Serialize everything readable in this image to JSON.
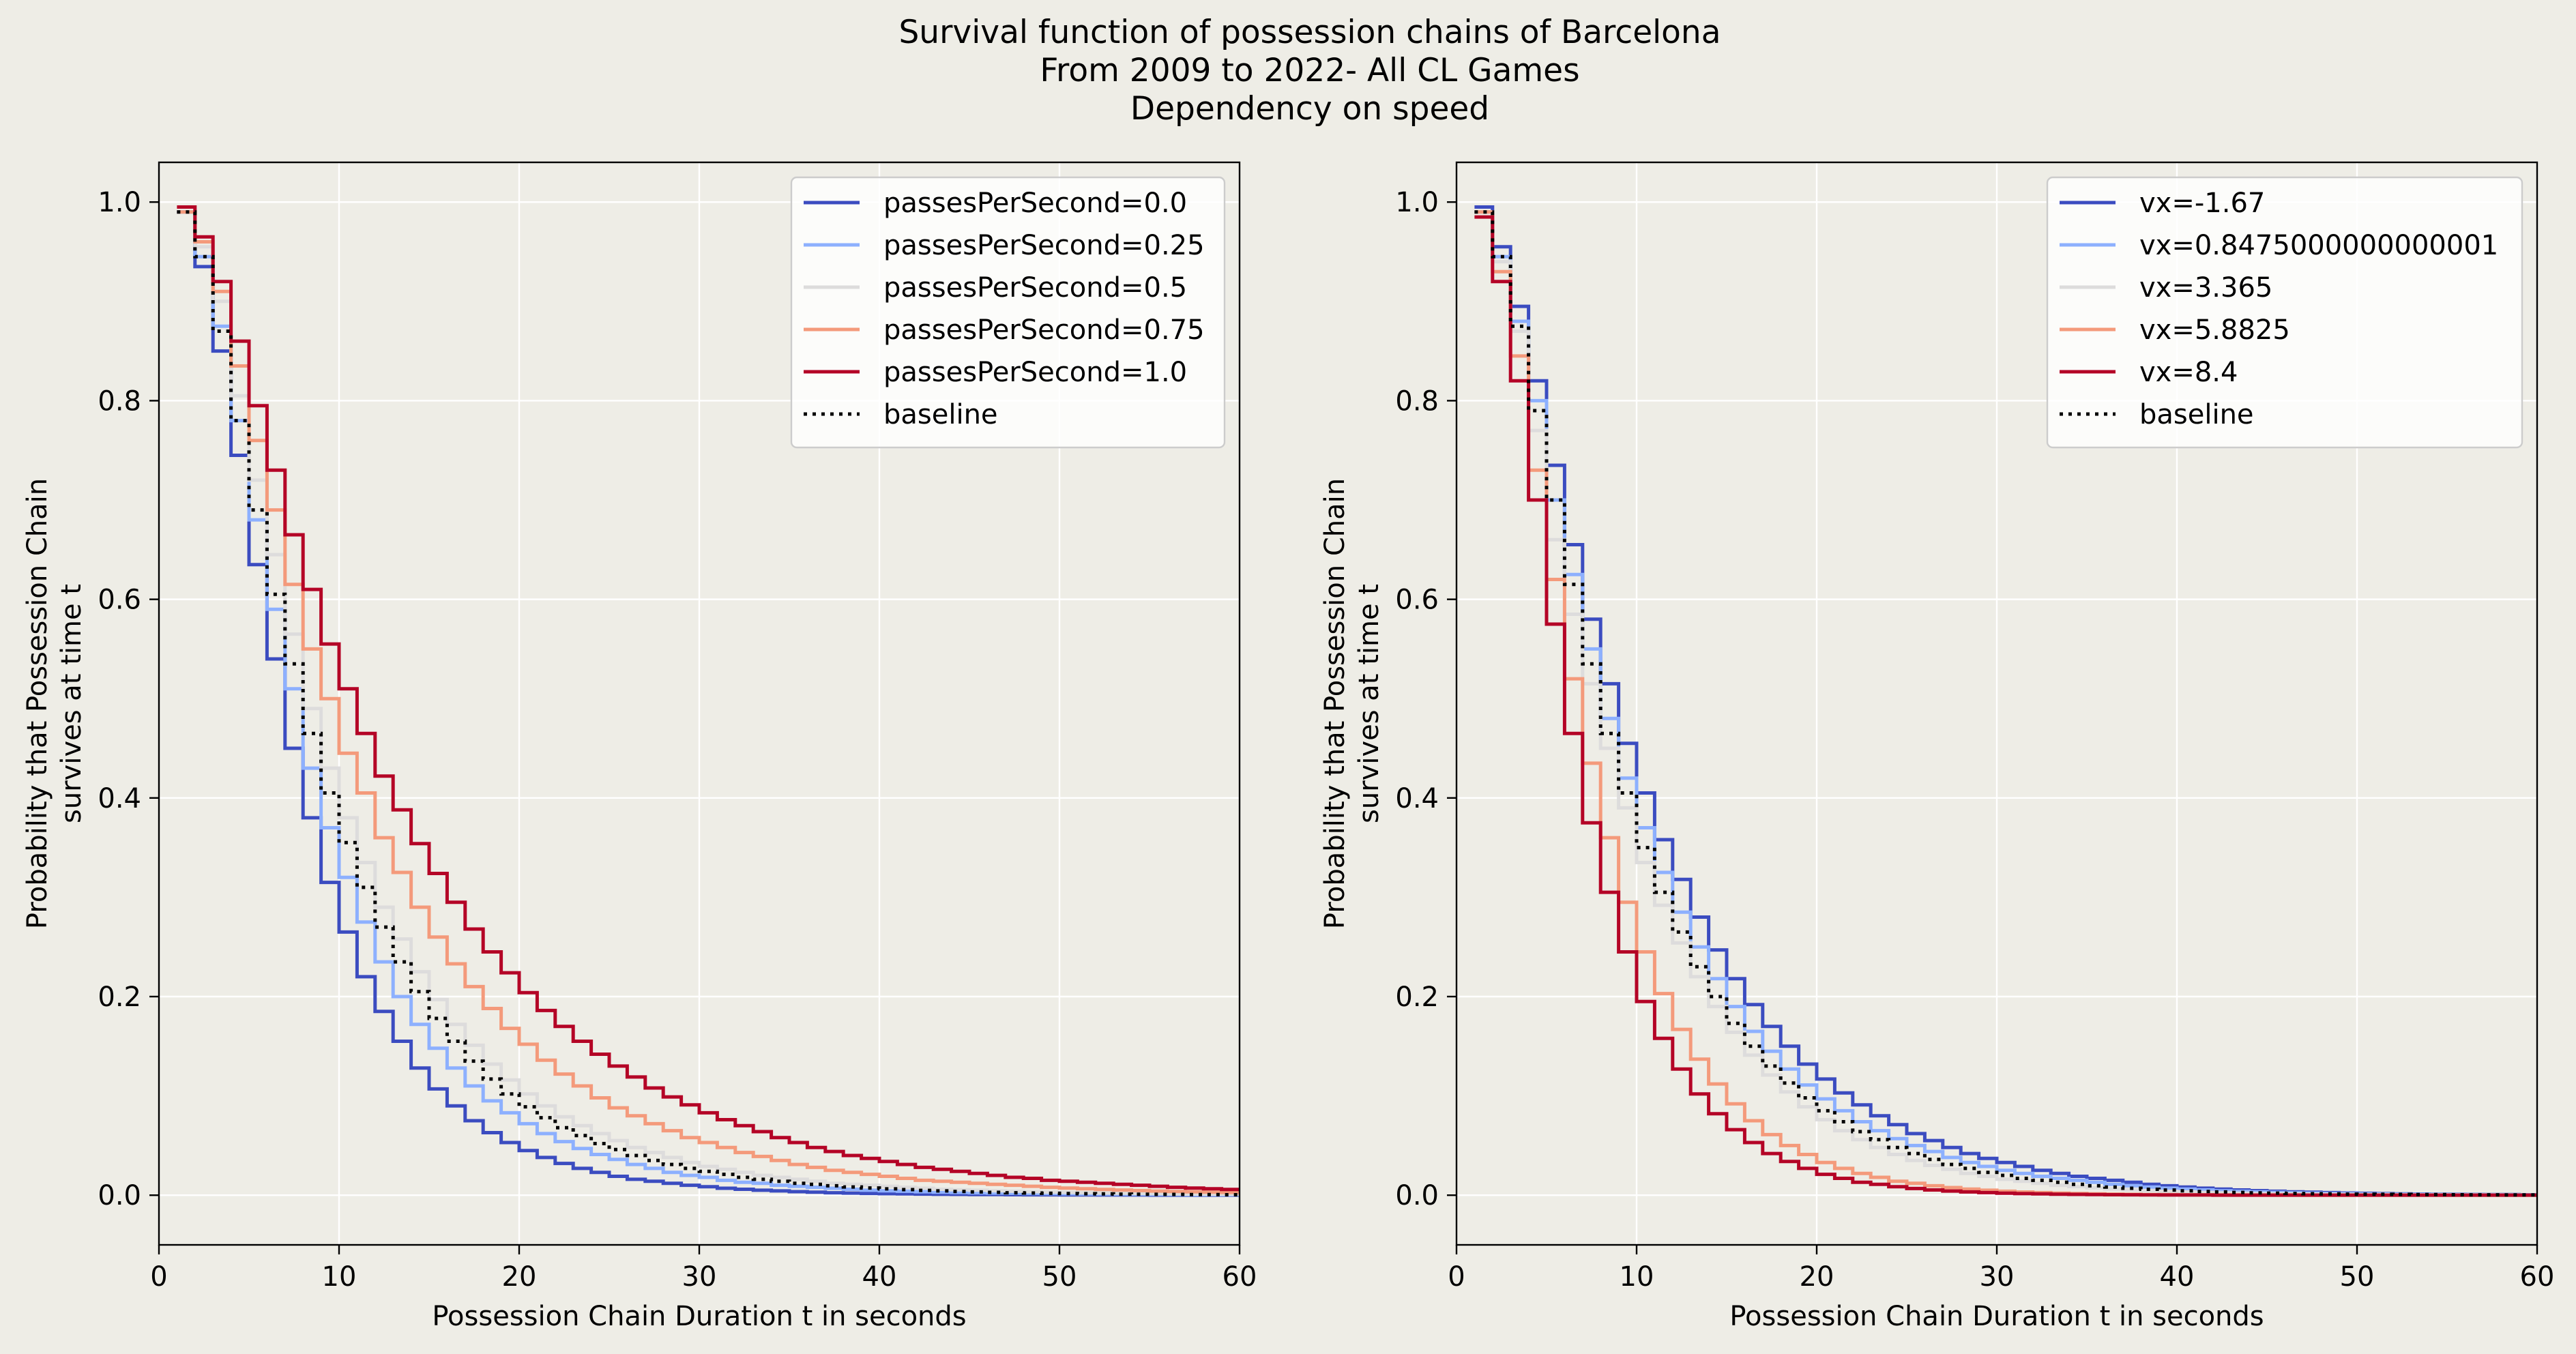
{
  "figure": {
    "title_lines": [
      "Survival function of possession chains of Barcelona",
      "From 2009 to 2022- All CL Games",
      "Dependency on speed"
    ],
    "background": "#eeede6",
    "axes_background": "#eeede6",
    "grid_color": "#ffffff"
  },
  "chart_data": [
    {
      "type": "line",
      "step": true,
      "xlabel": "Possession Chain Duration t in seconds",
      "ylabel_lines": [
        "Probability that Possession Chain",
        "survives at time t"
      ],
      "xlim": [
        0,
        60
      ],
      "ylim": [
        -0.05,
        1.04
      ],
      "xticks": [
        0,
        10,
        20,
        30,
        40,
        50,
        60
      ],
      "yticks": [
        0.0,
        0.2,
        0.4,
        0.6,
        0.8,
        1.0
      ],
      "grid": true,
      "legend_position": "top-right",
      "x": [
        1,
        2,
        3,
        4,
        5,
        6,
        7,
        8,
        9,
        10,
        11,
        12,
        13,
        14,
        15,
        16,
        17,
        18,
        19,
        20,
        21,
        22,
        23,
        24,
        25,
        26,
        27,
        28,
        29,
        30,
        31,
        32,
        33,
        34,
        35,
        36,
        37,
        38,
        39,
        40,
        41,
        42,
        43,
        44,
        45,
        46,
        47,
        48,
        49,
        50,
        51,
        52,
        53,
        54,
        55,
        56,
        57,
        58,
        59,
        60
      ],
      "series": [
        {
          "name": "passesPerSecond=0.0",
          "color": "#3b4cc0",
          "dash": "solid",
          "values": [
            0.99,
            0.935,
            0.85,
            0.745,
            0.635,
            0.54,
            0.45,
            0.38,
            0.315,
            0.265,
            0.22,
            0.185,
            0.155,
            0.128,
            0.107,
            0.09,
            0.075,
            0.063,
            0.053,
            0.045,
            0.038,
            0.032,
            0.027,
            0.023,
            0.019,
            0.016,
            0.014,
            0.012,
            0.01,
            0.0085,
            0.007,
            0.006,
            0.005,
            0.0043,
            0.0036,
            0.003,
            0.0025,
            0.0021,
            0.0018,
            0.0015,
            0.0013,
            0.0011,
            0.0009,
            0.0008,
            0.0007,
            0.0006,
            0.0005,
            0.0004,
            0.0004,
            0.0003,
            0.0003,
            0.0002,
            0.0002,
            0.0002,
            0.0001,
            0.0001,
            0.0001,
            0.0001,
            0.0001,
            0.0001
          ]
        },
        {
          "name": "passesPerSecond=0.25",
          "color": "#8db0fe",
          "dash": "solid",
          "values": [
            0.99,
            0.945,
            0.875,
            0.78,
            0.68,
            0.59,
            0.51,
            0.43,
            0.37,
            0.32,
            0.275,
            0.235,
            0.2,
            0.172,
            0.148,
            0.128,
            0.11,
            0.095,
            0.083,
            0.072,
            0.062,
            0.054,
            0.047,
            0.041,
            0.036,
            0.031,
            0.027,
            0.023,
            0.02,
            0.018,
            0.015,
            0.013,
            0.012,
            0.01,
            0.009,
            0.008,
            0.007,
            0.006,
            0.005,
            0.0045,
            0.004,
            0.0035,
            0.003,
            0.0027,
            0.0024,
            0.0021,
            0.0019,
            0.0017,
            0.0015,
            0.0013,
            0.0011,
            0.001,
            0.0009,
            0.0008,
            0.0007,
            0.0006,
            0.0005,
            0.0005,
            0.0004,
            0.0004
          ]
        },
        {
          "name": "passesPerSecond=0.5",
          "color": "#dddcdc",
          "dash": "solid",
          "values": [
            0.99,
            0.955,
            0.9,
            0.805,
            0.72,
            0.645,
            0.565,
            0.49,
            0.43,
            0.38,
            0.335,
            0.29,
            0.258,
            0.225,
            0.197,
            0.172,
            0.151,
            0.132,
            0.116,
            0.102,
            0.09,
            0.079,
            0.07,
            0.062,
            0.055,
            0.048,
            0.043,
            0.038,
            0.033,
            0.029,
            0.026,
            0.023,
            0.02,
            0.018,
            0.016,
            0.014,
            0.012,
            0.011,
            0.01,
            0.009,
            0.008,
            0.007,
            0.006,
            0.0055,
            0.005,
            0.0045,
            0.004,
            0.0035,
            0.003,
            0.0028,
            0.0025,
            0.0022,
            0.002,
            0.0018,
            0.0016,
            0.0014,
            0.0012,
            0.0011,
            0.001,
            0.0009
          ]
        },
        {
          "name": "passesPerSecond=0.75",
          "color": "#f49a7b",
          "dash": "solid",
          "values": [
            0.99,
            0.96,
            0.91,
            0.835,
            0.76,
            0.69,
            0.615,
            0.55,
            0.5,
            0.445,
            0.405,
            0.36,
            0.325,
            0.29,
            0.26,
            0.233,
            0.21,
            0.188,
            0.168,
            0.152,
            0.136,
            0.122,
            0.11,
            0.098,
            0.088,
            0.08,
            0.072,
            0.065,
            0.058,
            0.053,
            0.048,
            0.043,
            0.039,
            0.035,
            0.031,
            0.028,
            0.025,
            0.023,
            0.021,
            0.019,
            0.017,
            0.015,
            0.014,
            0.013,
            0.012,
            0.011,
            0.01,
            0.009,
            0.008,
            0.0072,
            0.0065,
            0.0058,
            0.0052,
            0.0047,
            0.0042,
            0.0038,
            0.0034,
            0.003,
            0.0027,
            0.0024
          ]
        },
        {
          "name": "passesPerSecond=1.0",
          "color": "#b40426",
          "dash": "solid",
          "values": [
            0.995,
            0.965,
            0.92,
            0.86,
            0.795,
            0.73,
            0.665,
            0.61,
            0.555,
            0.51,
            0.465,
            0.422,
            0.388,
            0.354,
            0.324,
            0.295,
            0.268,
            0.245,
            0.224,
            0.204,
            0.186,
            0.17,
            0.155,
            0.142,
            0.13,
            0.119,
            0.108,
            0.099,
            0.091,
            0.083,
            0.076,
            0.07,
            0.064,
            0.058,
            0.053,
            0.048,
            0.044,
            0.04,
            0.037,
            0.034,
            0.031,
            0.028,
            0.026,
            0.024,
            0.022,
            0.02,
            0.018,
            0.017,
            0.015,
            0.014,
            0.013,
            0.012,
            0.011,
            0.01,
            0.009,
            0.008,
            0.0072,
            0.0065,
            0.0058,
            0.0052
          ]
        },
        {
          "name": "baseline",
          "color": "#000000",
          "dash": "dotted",
          "values": [
            0.99,
            0.945,
            0.87,
            0.78,
            0.69,
            0.605,
            0.535,
            0.465,
            0.405,
            0.355,
            0.31,
            0.27,
            0.235,
            0.205,
            0.178,
            0.155,
            0.135,
            0.117,
            0.102,
            0.089,
            0.078,
            0.068,
            0.06,
            0.052,
            0.046,
            0.04,
            0.035,
            0.031,
            0.027,
            0.024,
            0.021,
            0.018,
            0.016,
            0.014,
            0.012,
            0.011,
            0.0095,
            0.0083,
            0.0073,
            0.0064,
            0.0056,
            0.0049,
            0.0043,
            0.0038,
            0.0033,
            0.0029,
            0.0025,
            0.0022,
            0.0019,
            0.0017,
            0.0015,
            0.0013,
            0.0011,
            0.001,
            0.0009,
            0.0008,
            0.0007,
            0.0006,
            0.0005,
            0.0004
          ]
        }
      ]
    },
    {
      "type": "line",
      "step": true,
      "xlabel": "Possession Chain Duration t in seconds",
      "ylabel_lines": [
        "Probability that Possession Chain",
        "survives at time t"
      ],
      "xlim": [
        0,
        60
      ],
      "ylim": [
        -0.05,
        1.04
      ],
      "xticks": [
        0,
        10,
        20,
        30,
        40,
        50,
        60
      ],
      "yticks": [
        0.0,
        0.2,
        0.4,
        0.6,
        0.8,
        1.0
      ],
      "grid": true,
      "legend_position": "top-right",
      "x": [
        1,
        2,
        3,
        4,
        5,
        6,
        7,
        8,
        9,
        10,
        11,
        12,
        13,
        14,
        15,
        16,
        17,
        18,
        19,
        20,
        21,
        22,
        23,
        24,
        25,
        26,
        27,
        28,
        29,
        30,
        31,
        32,
        33,
        34,
        35,
        36,
        37,
        38,
        39,
        40,
        41,
        42,
        43,
        44,
        45,
        46,
        47,
        48,
        49,
        50,
        51,
        52,
        53,
        54,
        55,
        56,
        57,
        58,
        59,
        60
      ],
      "series": [
        {
          "name": "vx=-1.67",
          "color": "#3b4cc0",
          "dash": "solid",
          "values": [
            0.995,
            0.955,
            0.895,
            0.82,
            0.735,
            0.655,
            0.58,
            0.515,
            0.455,
            0.405,
            0.358,
            0.318,
            0.28,
            0.247,
            0.218,
            0.192,
            0.17,
            0.15,
            0.132,
            0.117,
            0.103,
            0.091,
            0.08,
            0.071,
            0.062,
            0.055,
            0.048,
            0.042,
            0.037,
            0.033,
            0.029,
            0.025,
            0.022,
            0.019,
            0.017,
            0.015,
            0.013,
            0.011,
            0.0095,
            0.0082,
            0.0071,
            0.0061,
            0.0053,
            0.0046,
            0.004,
            0.0034,
            0.003,
            0.0026,
            0.0022,
            0.0019,
            0.0016,
            0.0014,
            0.0012,
            0.001,
            0.0009,
            0.0008,
            0.0007,
            0.0006,
            0.0005,
            0.0004
          ]
        },
        {
          "name": "vx=0.8475000000000001",
          "color": "#8db0fe",
          "dash": "solid",
          "values": [
            0.99,
            0.945,
            0.88,
            0.8,
            0.7,
            0.625,
            0.55,
            0.48,
            0.42,
            0.37,
            0.325,
            0.285,
            0.25,
            0.218,
            0.19,
            0.165,
            0.145,
            0.127,
            0.111,
            0.097,
            0.085,
            0.074,
            0.065,
            0.057,
            0.05,
            0.044,
            0.038,
            0.033,
            0.029,
            0.025,
            0.022,
            0.019,
            0.017,
            0.015,
            0.013,
            0.011,
            0.0095,
            0.0082,
            0.0071,
            0.0061,
            0.0053,
            0.0045,
            0.0039,
            0.0034,
            0.0029,
            0.0025,
            0.0021,
            0.0018,
            0.0016,
            0.0014,
            0.0012,
            0.001,
            0.0009,
            0.0008,
            0.0007,
            0.0006,
            0.0005,
            0.0004,
            0.0003,
            0.0003
          ]
        },
        {
          "name": "vx=3.365",
          "color": "#dddcdc",
          "dash": "solid",
          "values": [
            0.99,
            0.94,
            0.87,
            0.77,
            0.66,
            0.585,
            0.515,
            0.45,
            0.39,
            0.335,
            0.292,
            0.254,
            0.22,
            0.19,
            0.164,
            0.141,
            0.121,
            0.104,
            0.089,
            0.076,
            0.065,
            0.056,
            0.048,
            0.041,
            0.035,
            0.03,
            0.026,
            0.022,
            0.019,
            0.016,
            0.014,
            0.012,
            0.01,
            0.0087,
            0.0074,
            0.0063,
            0.0054,
            0.0046,
            0.0039,
            0.0033,
            0.0028,
            0.0024,
            0.002,
            0.0017,
            0.0015,
            0.0013,
            0.0011,
            0.0009,
            0.0008,
            0.0007,
            0.0006,
            0.0005,
            0.0004,
            0.0004,
            0.0003,
            0.0003,
            0.0002,
            0.0002,
            0.0002,
            0.0001
          ]
        },
        {
          "name": "vx=5.8825",
          "color": "#f49a7b",
          "dash": "solid",
          "values": [
            0.99,
            0.93,
            0.845,
            0.73,
            0.62,
            0.52,
            0.435,
            0.36,
            0.295,
            0.245,
            0.203,
            0.167,
            0.137,
            0.112,
            0.092,
            0.075,
            0.061,
            0.05,
            0.041,
            0.033,
            0.027,
            0.022,
            0.018,
            0.014,
            0.012,
            0.0095,
            0.0077,
            0.0062,
            0.005,
            0.004,
            0.0032,
            0.0026,
            0.0021,
            0.0017,
            0.0014,
            0.0011,
            0.0009,
            0.0007,
            0.0006,
            0.0005,
            0.0004,
            0.0003,
            0.0003,
            0.0002,
            0.0002,
            0.0002,
            0.0001,
            0.0001,
            0.0001,
            0.0001,
            0.0001,
            0.0001,
            0.0001,
            0.0001,
            0.0001,
            0.0001,
            0.0001,
            0.0001,
            0.0001,
            0.0001
          ]
        },
        {
          "name": "vx=8.4",
          "color": "#b40426",
          "dash": "solid",
          "values": [
            0.985,
            0.92,
            0.82,
            0.7,
            0.575,
            0.465,
            0.375,
            0.305,
            0.245,
            0.195,
            0.158,
            0.127,
            0.102,
            0.082,
            0.066,
            0.053,
            0.042,
            0.034,
            0.027,
            0.021,
            0.017,
            0.013,
            0.011,
            0.0085,
            0.0067,
            0.0053,
            0.0042,
            0.0033,
            0.0026,
            0.002,
            0.0016,
            0.0013,
            0.001,
            0.0008,
            0.0006,
            0.0005,
            0.0004,
            0.0003,
            0.0002,
            0.0002,
            0.0002,
            0.0001,
            0.0001,
            0.0001,
            0.0001,
            0.0001,
            0.0001,
            0.0001,
            0.0001,
            0.0001,
            0.0001,
            0.0001,
            0.0001,
            0.0001,
            0.0001,
            0.0001,
            0.0001,
            0.0001,
            0.0001,
            0.0001
          ]
        },
        {
          "name": "baseline",
          "color": "#000000",
          "dash": "dotted",
          "values": [
            0.99,
            0.945,
            0.875,
            0.79,
            0.7,
            0.615,
            0.535,
            0.465,
            0.405,
            0.35,
            0.305,
            0.265,
            0.23,
            0.2,
            0.173,
            0.15,
            0.13,
            0.113,
            0.098,
            0.085,
            0.074,
            0.064,
            0.056,
            0.048,
            0.042,
            0.036,
            0.031,
            0.027,
            0.023,
            0.02,
            0.017,
            0.015,
            0.013,
            0.011,
            0.0095,
            0.0082,
            0.007,
            0.006,
            0.0052,
            0.0045,
            0.0038,
            0.0033,
            0.0028,
            0.0024,
            0.0021,
            0.0018,
            0.0015,
            0.0013,
            0.0011,
            0.001,
            0.0009,
            0.0008,
            0.0007,
            0.0006,
            0.0005,
            0.0004,
            0.0004,
            0.0003,
            0.0003,
            0.0002
          ]
        }
      ]
    }
  ]
}
